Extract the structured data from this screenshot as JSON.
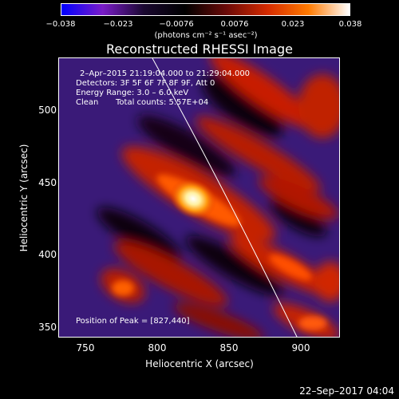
{
  "colorbar": {
    "tick_labels": [
      "−0.038",
      "−0.023",
      "−0.0076",
      "0.0076",
      "0.023",
      "0.038"
    ],
    "units": "(photons cm⁻² s⁻¹ asec⁻²)"
  },
  "title": "Reconstructed RHESSI Image",
  "info": {
    "time_range": "2–Apr–2015 21:19:04.000 to 21:29:04.000",
    "detectors": "Detectors: 3F 5F 6F 7F 8F 9F, Att 0",
    "energy": "Energy Range: 3.0 – 6.0 keV",
    "clean": "Clean",
    "total_counts": "Total counts: 5.57E+04",
    "peak": "Position of Peak = [827,440]"
  },
  "axes": {
    "xlabel": "Heliocentric X (arcsec)",
    "ylabel": "Heliocentric Y (arcsec)",
    "x_ticks": [
      "750",
      "800",
      "850",
      "900"
    ],
    "y_ticks": [
      "500",
      "450",
      "400",
      "350"
    ]
  },
  "timestamp": "22–Sep–2017 04:04",
  "colors": {
    "colorbar_stops": [
      "#0000ff",
      "#7a1cc8",
      "#1a0830",
      "#000000",
      "#6a0a08",
      "#d42a00",
      "#ff7a00",
      "#ffffff"
    ],
    "background_field": "#3a1a78"
  }
}
